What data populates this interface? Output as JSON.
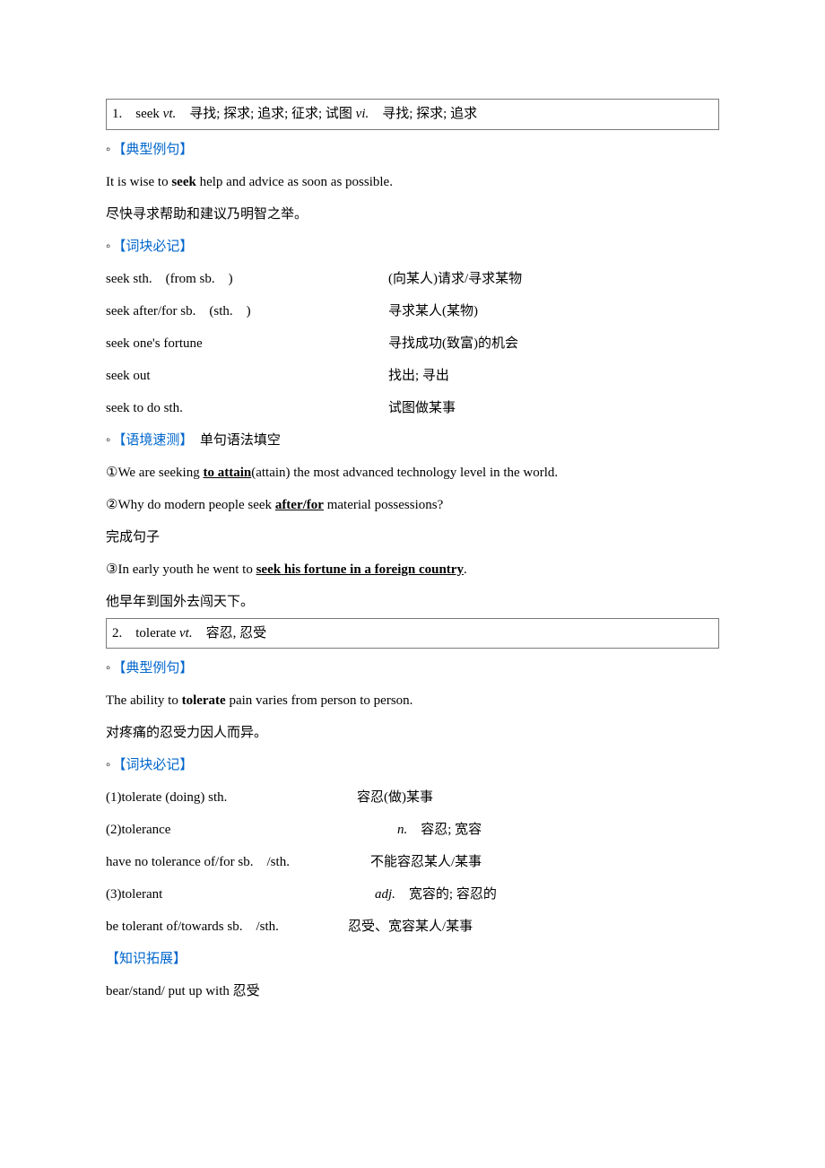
{
  "entry1": {
    "header_num": "1.　",
    "header_word": "seek ",
    "header_pos1": "vt.",
    "header_def1": "　寻找; 探求; 追求; 征求; 试图 ",
    "header_pos2": "vi.",
    "header_def2": "　寻找; 探求; 追求",
    "section_example": "【典型例句】",
    "example_pre": "It is wise to ",
    "example_bold": "seek",
    "example_post": " help and advice as soon as possible.",
    "example_cn": "尽快寻求帮助和建议乃明智之举。",
    "section_block": "【词块必记】",
    "blocks": [
      {
        "l": "seek sth.　(from sb.　)",
        "r": "(向某人)请求/寻求某物"
      },
      {
        "l": "seek after/for sb.　(sth.　)",
        "r": "寻求某人(某物)"
      },
      {
        "l": "seek one's fortune",
        "r": "寻找成功(致富)的机会"
      },
      {
        "l": "seek out",
        "r": "找出; 寻出"
      },
      {
        "l": "seek to do sth.",
        "r": "试图做某事"
      }
    ],
    "section_test": "【语境速测】",
    "section_test_suffix": "　单句语法填空",
    "t1_pre": "①We are seeking ",
    "t1_ul": "to attain",
    "t1_post": "(attain) the most advanced technology level in the world.",
    "t2_pre": "②Why do modern people seek ",
    "t2_ul": "after/for",
    "t2_post": " material possessions?",
    "complete": "完成句子",
    "t3_pre": "③In early youth he went to ",
    "t3_ul": "seek his fortune in a foreign country",
    "t3_post": ".",
    "t3_cn": "他早年到国外去闯天下。"
  },
  "entry2": {
    "header_num": "2.　",
    "header_word": "tolerate ",
    "header_pos": "vt.",
    "header_def": "　容忍, 忍受",
    "section_example": "【典型例句】",
    "example_pre": "The ability to ",
    "example_bold": "tolerate",
    "example_post": " pain varies from person to person.",
    "example_cn": "对疼痛的忍受力因人而异。",
    "section_block": "【词块必记】",
    "b1_l": "(1)tolerate (doing) sth.",
    "b1_r": "容忍(做)某事",
    "b2_l": "(2)tolerance",
    "b2_pos": "n.",
    "b2_r": "　容忍; 宽容",
    "b3_l": "have no tolerance of/for sb.　/sth.",
    "b3_r": "不能容忍某人/某事",
    "b4_l": "(3)tolerant",
    "b4_pos": "adj.",
    "b4_r": "　宽容的; 容忍的",
    "b5_l": "be tolerant of/towards sb.　/sth.",
    "b5_r": "忍受、宽容某人/某事",
    "section_expand": "【知识拓展】",
    "expand_text": "bear/stand/ put up with 忍受"
  }
}
